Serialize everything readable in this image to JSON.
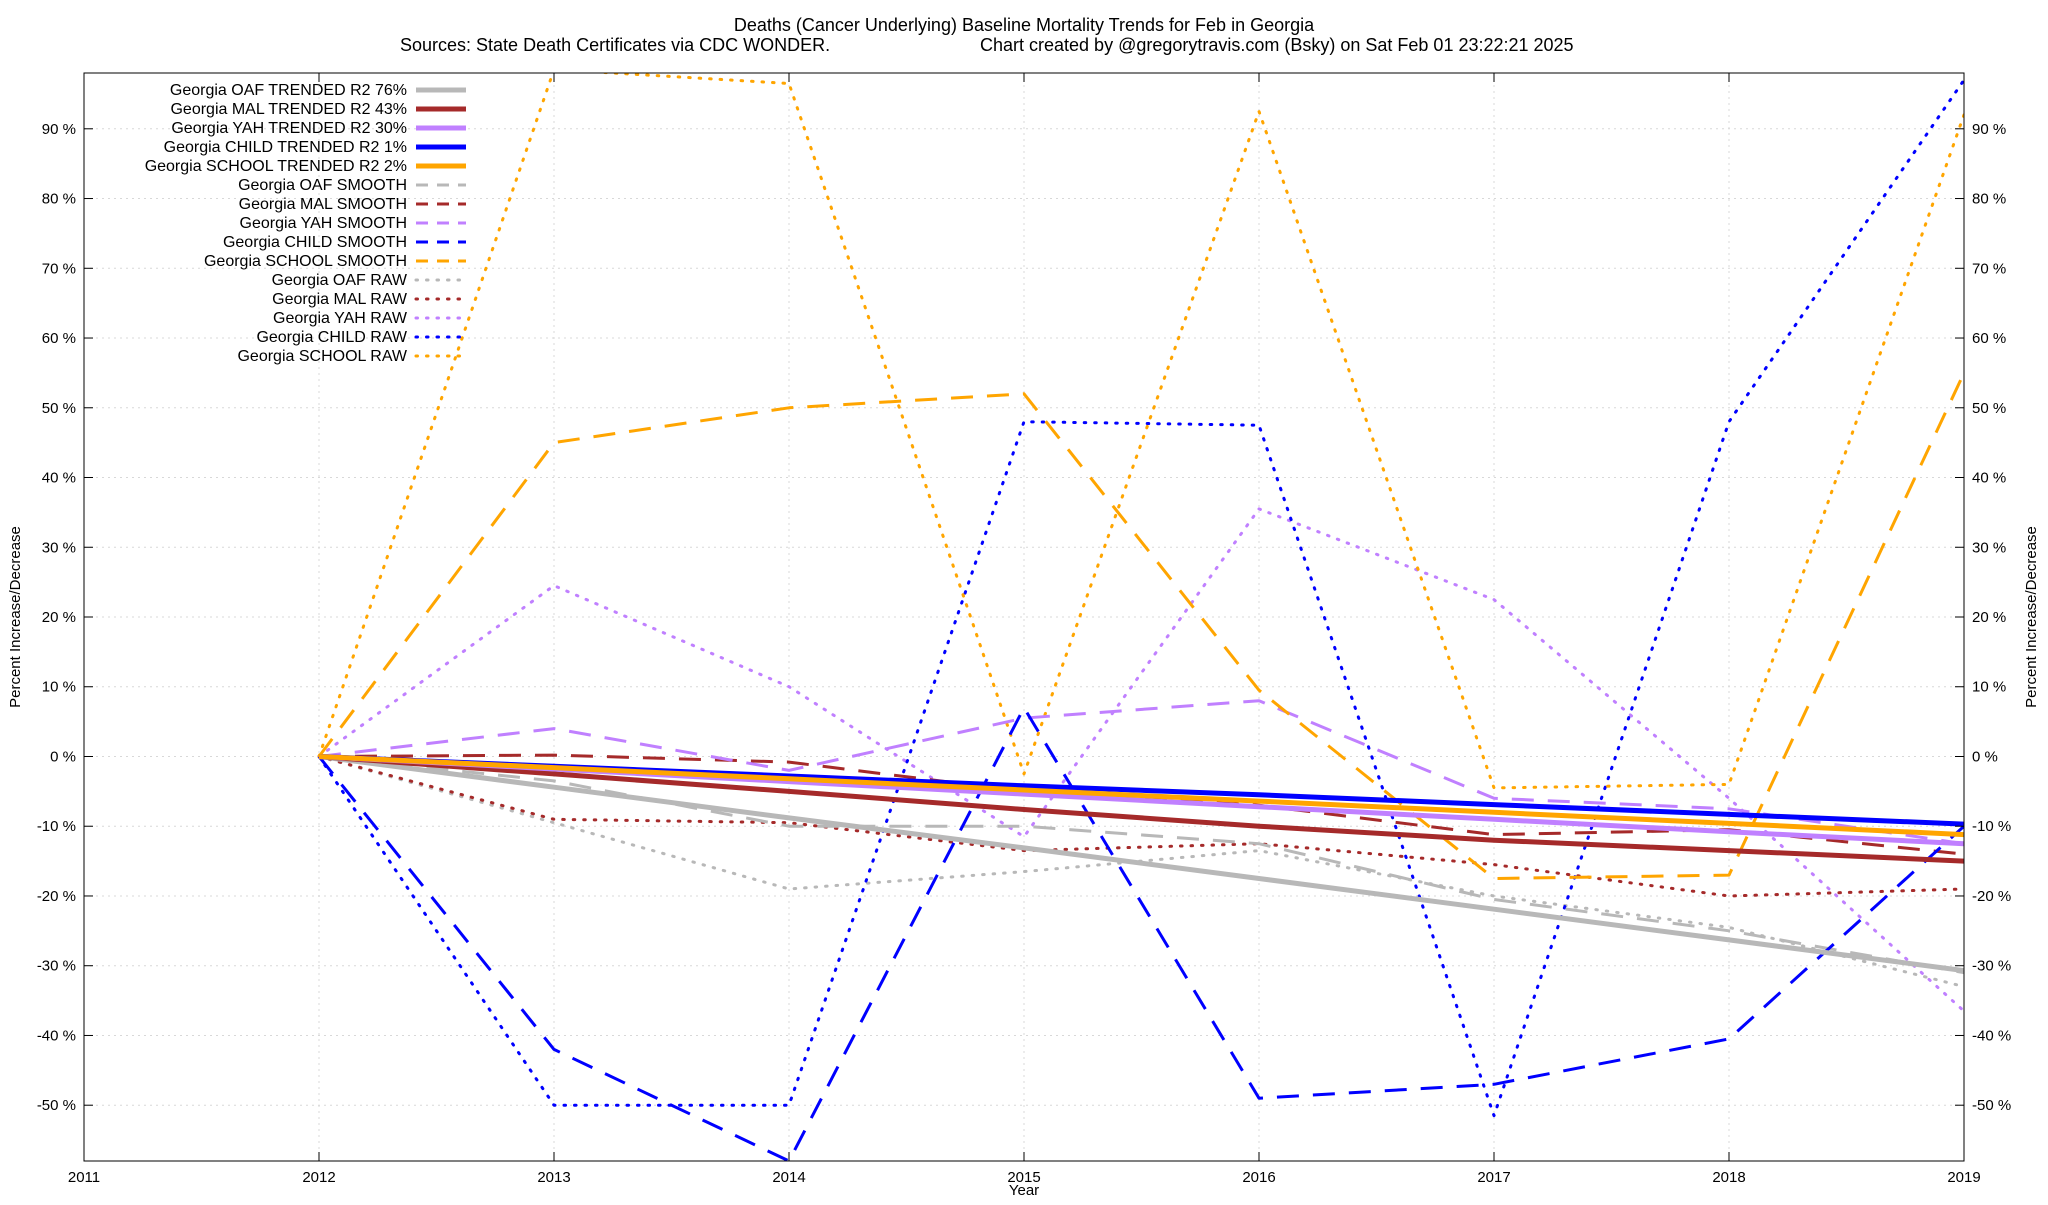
{
  "chart_data": {
    "type": "line",
    "title": "Deaths (Cancer Underlying)  Baseline Mortality Trends for Feb in Georgia",
    "subtitle_left": "Sources: State Death Certificates via CDC WONDER.",
    "subtitle_right": "Chart created by @gregorytravis.com (Bsky) on Sat Feb 01 23:22:21 2025",
    "xlabel": "Year",
    "ylabel": "Percent Increase/Decrease",
    "y2label": "Percent Increase/Decrease",
    "xlim": [
      2011,
      2019
    ],
    "ylim": [
      -58,
      98
    ],
    "x_ticks": [
      "2011",
      "2012",
      "2013",
      "2014",
      "2015",
      "2016",
      "2017",
      "2018",
      "2019"
    ],
    "y_ticks": [
      {
        "value": 90,
        "label": "90 %"
      },
      {
        "value": 80,
        "label": "80 %"
      },
      {
        "value": 70,
        "label": "70 %"
      },
      {
        "value": 60,
        "label": "60 %"
      },
      {
        "value": 50,
        "label": "50 %"
      },
      {
        "value": 40,
        "label": "40 %"
      },
      {
        "value": 30,
        "label": "30 %"
      },
      {
        "value": 20,
        "label": "20 %"
      },
      {
        "value": 10,
        "label": "10 %"
      },
      {
        "value": 0,
        "label": "0 %"
      },
      {
        "value": -10,
        "label": "-10 %"
      },
      {
        "value": -20,
        "label": "-20 %"
      },
      {
        "value": -30,
        "label": "-30 %"
      },
      {
        "value": -40,
        "label": "-40 %"
      },
      {
        "value": -50,
        "label": "-50 %"
      }
    ],
    "grid": true,
    "legend_position": "top-left",
    "series": [
      {
        "name": "Georgia OAF TRENDED R2  76%",
        "style": "solid",
        "color": "#b8b8b8",
        "x": [
          2012,
          2013,
          2014,
          2015,
          2016,
          2017,
          2018,
          2019
        ],
        "y": [
          0,
          -4.4,
          -8.8,
          -13.1,
          -17.5,
          -21.9,
          -26.3,
          -30.7
        ]
      },
      {
        "name": "Georgia MAL TRENDED R2  43%",
        "style": "solid",
        "color": "#a52a2a",
        "x": [
          2012,
          2013,
          2014,
          2015,
          2016,
          2017,
          2018,
          2019
        ],
        "y": [
          0,
          -2.5,
          -5.0,
          -7.6,
          -10.0,
          -12.0,
          -13.5,
          -15.0
        ]
      },
      {
        "name": "Georgia YAH TRENDED R2  30%",
        "style": "solid",
        "color": "#c080ff",
        "x": [
          2012,
          2013,
          2014,
          2015,
          2016,
          2017,
          2018,
          2019
        ],
        "y": [
          0,
          -1.8,
          -3.6,
          -5.4,
          -7.2,
          -9.0,
          -10.8,
          -12.5
        ]
      },
      {
        "name": "Georgia CHILD TRENDED R2   1%",
        "style": "solid",
        "color": "#0000ff",
        "x": [
          2012,
          2013,
          2014,
          2015,
          2016,
          2017,
          2018,
          2019
        ],
        "y": [
          0,
          -1.4,
          -2.8,
          -4.2,
          -5.5,
          -6.9,
          -8.3,
          -9.7
        ]
      },
      {
        "name": "Georgia SCHOOL TRENDED R2   2%",
        "style": "solid",
        "color": "#ffa500",
        "x": [
          2012,
          2013,
          2014,
          2015,
          2016,
          2017,
          2018,
          2019
        ],
        "y": [
          0,
          -1.6,
          -3.2,
          -4.8,
          -6.4,
          -8.0,
          -9.6,
          -11.2
        ]
      },
      {
        "name": "Georgia OAF SMOOTH",
        "style": "dashed",
        "color": "#b8b8b8",
        "x": [
          2012,
          2013,
          2014,
          2015,
          2016,
          2017,
          2018,
          2019
        ],
        "y": [
          0,
          -3.5,
          -10.0,
          -10.0,
          -12.5,
          -20.5,
          -25.0,
          -31.0
        ]
      },
      {
        "name": "Georgia MAL SMOOTH",
        "style": "dashed",
        "color": "#a52a2a",
        "x": [
          2012,
          2013,
          2014,
          2015,
          2016,
          2017,
          2018,
          2019
        ],
        "y": [
          0,
          0.2,
          -0.8,
          -5.0,
          -7.0,
          -11.2,
          -10.5,
          -14.0
        ]
      },
      {
        "name": "Georgia YAH SMOOTH",
        "style": "dashed",
        "color": "#c080ff",
        "x": [
          2012,
          2013,
          2014,
          2015,
          2016,
          2017,
          2018,
          2019
        ],
        "y": [
          0,
          4.0,
          -2.0,
          5.5,
          8.0,
          -6.0,
          -7.5,
          -12.5
        ]
      },
      {
        "name": "Georgia CHILD SMOOTH",
        "style": "dashed",
        "color": "#0000ff",
        "x": [
          2012,
          2013,
          2014,
          2015,
          2016,
          2017,
          2018,
          2019
        ],
        "y": [
          0,
          -42.0,
          -58.0,
          7.0,
          -49.0,
          -47.0,
          -40.5,
          -10.0
        ]
      },
      {
        "name": "Georgia SCHOOL SMOOTH",
        "style": "dashed",
        "color": "#ffa500",
        "x": [
          2012,
          2013,
          2014,
          2015,
          2016,
          2017,
          2018,
          2019
        ],
        "y": [
          0,
          45.0,
          50.0,
          52.0,
          9.5,
          -17.5,
          -17.0,
          55.0
        ]
      },
      {
        "name": "Georgia OAF RAW",
        "style": "dotted",
        "color": "#b8b8b8",
        "x": [
          2012,
          2013,
          2014,
          2015,
          2016,
          2017,
          2018,
          2019
        ],
        "y": [
          0,
          -9.5,
          -19.0,
          -16.5,
          -13.5,
          -20.0,
          -24.5,
          -33.0
        ]
      },
      {
        "name": "Georgia MAL RAW",
        "style": "dotted",
        "color": "#a52a2a",
        "x": [
          2012,
          2013,
          2014,
          2015,
          2016,
          2017,
          2018,
          2019
        ],
        "y": [
          0,
          -9.0,
          -9.5,
          -13.5,
          -12.5,
          -15.5,
          -20.0,
          -19.0
        ]
      },
      {
        "name": "Georgia YAH RAW",
        "style": "dotted",
        "color": "#c080ff",
        "x": [
          2012,
          2013,
          2014,
          2015,
          2016,
          2017,
          2018,
          2019
        ],
        "y": [
          0,
          24.5,
          10.0,
          -11.5,
          35.5,
          22.5,
          -6.0,
          -36.5
        ]
      },
      {
        "name": "Georgia CHILD RAW",
        "style": "dotted",
        "color": "#0000ff",
        "x": [
          2012,
          2013,
          2014,
          2015,
          2016,
          2017,
          2018,
          2019
        ],
        "y": [
          0,
          -50.0,
          -50.0,
          48.0,
          47.5,
          -51.5,
          48.0,
          97.0
        ]
      },
      {
        "name": "Georgia SCHOOL RAW",
        "style": "dotted",
        "color": "#ffa500",
        "x": [
          2012,
          2013,
          2014,
          2015,
          2016,
          2017,
          2018,
          2019
        ],
        "y": [
          0,
          98.5,
          96.5,
          -2.5,
          92.5,
          -4.5,
          -4.0,
          92.0
        ]
      }
    ]
  }
}
